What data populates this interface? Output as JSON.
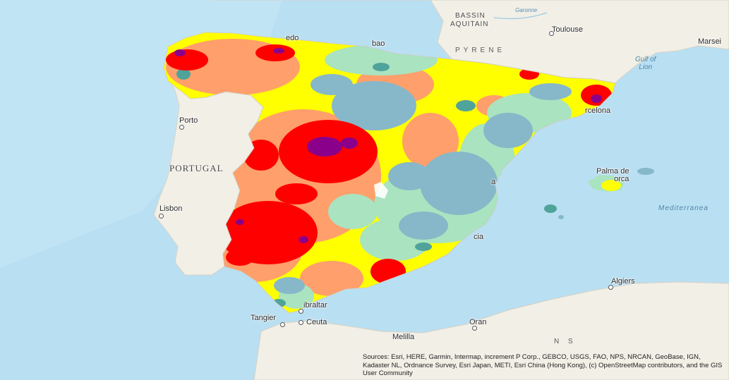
{
  "labels": {
    "bassin": "BASSIN",
    "aquitain": "AQUITAIN",
    "toulouse": "Toulouse",
    "marseille": "Marsei",
    "gulf": "Gulf of\nLion",
    "pyrenees": "PYRENE",
    "garonne": "Garonne",
    "bilbao": "bao",
    "oviedo": "edo",
    "porto": "Porto",
    "portugal": "PORTUGAL",
    "lisbon": "Lisbon",
    "barcelona": "rcelona",
    "palma": "Palma de",
    "palma2": "orca",
    "mediterranean": "Mediterranea",
    "valencia": "a",
    "murcia": "cia",
    "algiers": "Algiers",
    "gibraltar": "ibraltar",
    "tangier": "Tangier",
    "ceuta": "Ceuta",
    "melilla": "Melilla",
    "oran": "Oran",
    "ns": "N S"
  },
  "attribution": "Sources: Esri, HERE, Garmin, Intermap, increment P Corp., GEBCO, USGS, FAO, NPS, NRCAN, GeoBase, IGN, Kadaster NL, Ordnance Survey, Esri Japan, METI, Esri China (Hong Kong), (c) OpenStreetMap contributors, and the GIS User Community",
  "colors": {
    "sea": "#b9dff2",
    "land": "#f1efe6",
    "class_1": "#86b8c9",
    "class_2": "#a9e3c0",
    "class_3": "#ffff00",
    "class_4": "#ff9f6b",
    "class_5": "#ff0000",
    "class_6": "#8b008b",
    "teal": "#4fa39a"
  }
}
